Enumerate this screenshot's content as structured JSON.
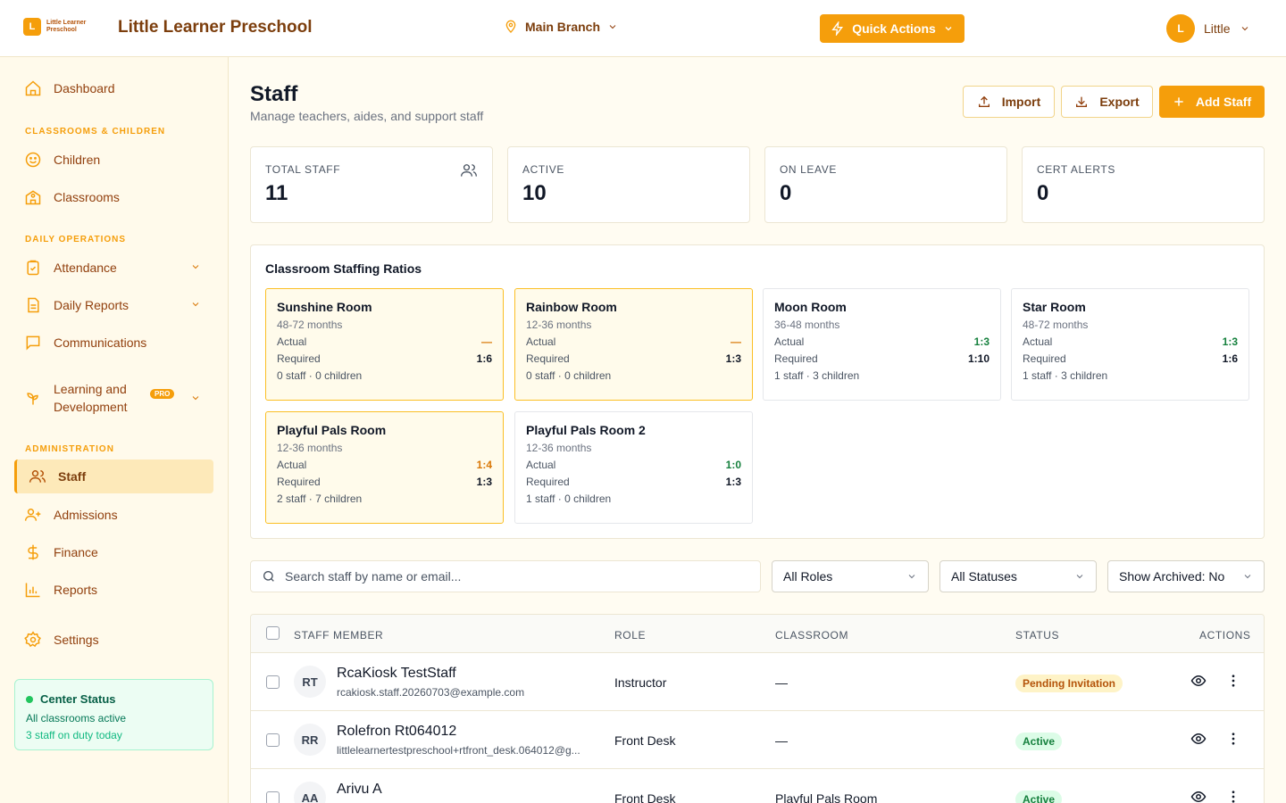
{
  "header": {
    "logo_letter": "L",
    "logo_text": "Little Learner Preschool",
    "title": "Little Learner Preschool",
    "branch": "Main Branch",
    "quick_actions": "Quick Actions",
    "user_initial": "L",
    "user_name": "Little"
  },
  "sidebar": {
    "dashboard": "Dashboard",
    "section_classrooms": "CLASSROOMS & CHILDREN",
    "children": "Children",
    "classrooms": "Classrooms",
    "section_daily": "DAILY OPERATIONS",
    "attendance": "Attendance",
    "daily_reports": "Daily Reports",
    "communications": "Communications",
    "learning": "Learning and Development",
    "pro_badge": "PRO",
    "section_admin": "ADMINISTRATION",
    "staff": "Staff",
    "admissions": "Admissions",
    "finance": "Finance",
    "reports": "Reports",
    "settings": "Settings",
    "center_status": {
      "title": "Center Status",
      "line1": "All classrooms active",
      "line2": "3 staff on duty today"
    }
  },
  "page": {
    "title": "Staff",
    "subtitle": "Manage teachers, aides, and support staff",
    "import": "Import",
    "export": "Export",
    "add_staff": "Add Staff"
  },
  "stats": [
    {
      "label": "TOTAL STAFF",
      "value": "11"
    },
    {
      "label": "ACTIVE",
      "value": "10"
    },
    {
      "label": "ON LEAVE",
      "value": "0"
    },
    {
      "label": "CERT ALERTS",
      "value": "0"
    }
  ],
  "ratios": {
    "title": "Classroom Staffing Ratios",
    "actual_label": "Actual",
    "required_label": "Required",
    "rooms": [
      {
        "name": "Sunshine Room",
        "age": "48-72 months",
        "actual": "—",
        "required": "1:6",
        "summary": "0 staff · 0 children"
      },
      {
        "name": "Rainbow Room",
        "age": "12-36 months",
        "actual": "—",
        "required": "1:3",
        "summary": "0 staff · 0 children"
      },
      {
        "name": "Moon Room",
        "age": "36-48 months",
        "actual": "1:3",
        "required": "1:10",
        "summary": "1 staff · 3 children"
      },
      {
        "name": "Star Room",
        "age": "48-72 months",
        "actual": "1:3",
        "required": "1:6",
        "summary": "1 staff · 3 children"
      },
      {
        "name": "Playful Pals Room",
        "age": "12-36 months",
        "actual": "1:4",
        "required": "1:3",
        "summary": "2 staff · 7 children"
      },
      {
        "name": "Playful Pals Room 2",
        "age": "12-36 months",
        "actual": "1:0",
        "required": "1:3",
        "summary": "1 staff · 0 children"
      }
    ]
  },
  "filters": {
    "search_placeholder": "Search staff by name or email...",
    "roles": "All Roles",
    "statuses": "All Statuses",
    "archived": "Show Archived: No"
  },
  "table": {
    "columns": [
      "STAFF MEMBER",
      "ROLE",
      "CLASSROOM",
      "STATUS",
      "ACTIONS"
    ],
    "rows": [
      {
        "initials": "RT",
        "name": "RcaKiosk TestStaff",
        "email": "rcakiosk.staff.20260703@example.com",
        "role": "Instructor",
        "classroom": "—",
        "status": "Pending Invitation"
      },
      {
        "initials": "RR",
        "name": "Rolefron Rt064012",
        "email": "littlelearnertestpreschool+rtfront_desk.064012@g...",
        "role": "Front Desk",
        "classroom": "—",
        "status": "Active"
      },
      {
        "initials": "AA",
        "name": "Arivu A",
        "email": "",
        "role": "Front Desk",
        "classroom": "Playful Pals Room",
        "status": "Active"
      }
    ]
  },
  "colors": {
    "accent": "#f59e0b",
    "brand_text": "#7c3e0d",
    "active_green": "#15803d"
  }
}
